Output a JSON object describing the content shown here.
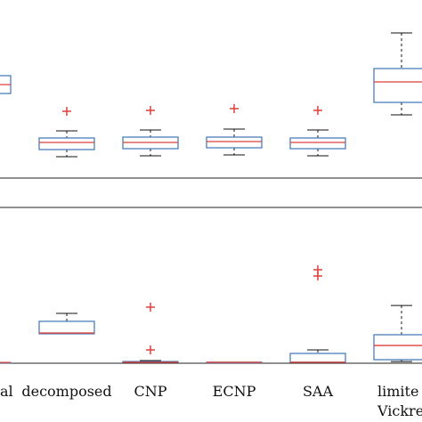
{
  "chart_data": [
    {
      "type": "box",
      "ylim": [
        0,
        100
      ],
      "boxes": [
        {
          "whisker_low": 47.5,
          "q1": 47.5,
          "median": 52.5,
          "q3": 57.5,
          "whisker_high": 57.5,
          "outliers": []
        },
        {
          "whisker_low": 12,
          "q1": 16,
          "median": 20,
          "q3": 22.5,
          "whisker_high": 26.5,
          "outliers": [
            37.5
          ]
        },
        {
          "whisker_low": 12.5,
          "q1": 16.5,
          "median": 20,
          "q3": 23,
          "whisker_high": 27,
          "outliers": [
            38
          ]
        },
        {
          "whisker_low": 13,
          "q1": 17,
          "median": 20.5,
          "q3": 23,
          "whisker_high": 27.5,
          "outliers": [
            39
          ]
        },
        {
          "whisker_low": 12.5,
          "q1": 16.5,
          "median": 20,
          "q3": 22.5,
          "whisker_high": 27,
          "outliers": [
            38
          ]
        },
        {
          "whisker_low": 35.5,
          "q1": 42.5,
          "median": 54,
          "q3": 61.5,
          "whisker_high": 81.5,
          "outliers": []
        }
      ],
      "box_color": "#4a7ebb",
      "median_color": "#d9413a",
      "outlier_color": "#d9413a"
    },
    {
      "type": "box",
      "ylim": [
        0,
        100
      ],
      "categories": [
        "al",
        "decomposed",
        "CNP",
        "ECNP",
        "SAA",
        "limite\nVickre"
      ],
      "boxes": [
        {
          "whisker_low": 0.5,
          "q1": 0.5,
          "median": 0.5,
          "q3": 0.5,
          "whisker_high": 0.5,
          "outliers": []
        },
        {
          "whisker_low": 18.9,
          "q1": 18.9,
          "median": 19.4,
          "q3": 26.9,
          "whisker_high": 32,
          "outliers": []
        },
        {
          "whisker_low": 0.6,
          "q1": 0.6,
          "median": 0.6,
          "q3": 1.1,
          "whisker_high": 1.7,
          "outliers": [
            36,
            8.6
          ]
        },
        {
          "whisker_low": 0.6,
          "q1": 0.6,
          "median": 0.6,
          "q3": 0.6,
          "whisker_high": 0.6,
          "outliers": []
        },
        {
          "whisker_low": 0.6,
          "q1": 0.6,
          "median": 0.6,
          "q3": 6.3,
          "whisker_high": 8.6,
          "outliers": [
            60,
            56
          ]
        },
        {
          "whisker_low": 1.1,
          "q1": 2.3,
          "median": 11.4,
          "q3": 18.3,
          "whisker_high": 37.1,
          "outliers": []
        }
      ],
      "box_color": "#4a7ebb",
      "median_color": "#d9413a",
      "outlier_color": "#d9413a"
    }
  ]
}
